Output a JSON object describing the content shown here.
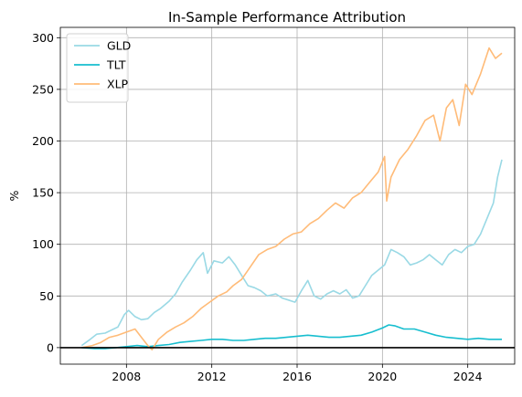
{
  "chart_data": {
    "type": "line",
    "title": "In-Sample Performance Attribution",
    "xlabel": "",
    "ylabel": "%",
    "xlim": [
      2004.9,
      2026.2
    ],
    "ylim": [
      -16,
      310
    ],
    "x_ticks": [
      2008,
      2012,
      2016,
      2020,
      2024
    ],
    "y_ticks": [
      0,
      50,
      100,
      150,
      200,
      250,
      300
    ],
    "grid": true,
    "legend_position": "top-left",
    "zero_line": true,
    "series": [
      {
        "name": "GLD",
        "color": "#9ad9e5",
        "x": [
          2005.9,
          2006.3,
          2006.6,
          2007.0,
          2007.3,
          2007.6,
          2007.9,
          2008.1,
          2008.4,
          2008.7,
          2009.0,
          2009.3,
          2009.6,
          2010.0,
          2010.3,
          2010.6,
          2011.0,
          2011.3,
          2011.6,
          2011.8,
          2012.1,
          2012.5,
          2012.8,
          2013.1,
          2013.4,
          2013.7,
          2014.0,
          2014.3,
          2014.6,
          2015.0,
          2015.3,
          2015.6,
          2015.9,
          2016.2,
          2016.5,
          2016.8,
          2017.1,
          2017.4,
          2017.7,
          2018.0,
          2018.3,
          2018.6,
          2018.9,
          2019.2,
          2019.5,
          2019.8,
          2020.1,
          2020.4,
          2020.7,
          2021.0,
          2021.3,
          2021.6,
          2021.9,
          2022.2,
          2022.5,
          2022.8,
          2023.1,
          2023.4,
          2023.7,
          2024.0,
          2024.3,
          2024.6,
          2024.9,
          2025.2,
          2025.4,
          2025.6
        ],
        "values": [
          2,
          8,
          13,
          14,
          17,
          20,
          32,
          36,
          30,
          27,
          28,
          34,
          38,
          45,
          52,
          63,
          75,
          85,
          92,
          72,
          84,
          82,
          88,
          80,
          70,
          60,
          58,
          55,
          50,
          52,
          48,
          46,
          44,
          55,
          65,
          50,
          47,
          52,
          55,
          52,
          56,
          48,
          50,
          60,
          70,
          75,
          80,
          95,
          92,
          88,
          80,
          82,
          85,
          90,
          85,
          80,
          90,
          95,
          92,
          98,
          100,
          110,
          125,
          140,
          165,
          182
        ]
      },
      {
        "name": "TLT",
        "color": "#17becf",
        "x": [
          2005.9,
          2006.5,
          2007.0,
          2007.5,
          2008.0,
          2008.5,
          2009.0,
          2009.5,
          2010.0,
          2010.5,
          2011.0,
          2011.5,
          2012.0,
          2012.5,
          2013.0,
          2013.5,
          2014.0,
          2014.5,
          2015.0,
          2015.5,
          2016.0,
          2016.5,
          2017.0,
          2017.5,
          2018.0,
          2018.5,
          2019.0,
          2019.5,
          2020.0,
          2020.3,
          2020.6,
          2021.0,
          2021.5,
          2022.0,
          2022.5,
          2023.0,
          2023.5,
          2024.0,
          2024.5,
          2025.0,
          2025.6
        ],
        "values": [
          0,
          -1,
          -1,
          0,
          1,
          2,
          1,
          2,
          3,
          5,
          6,
          7,
          8,
          8,
          7,
          7,
          8,
          9,
          9,
          10,
          11,
          12,
          11,
          10,
          10,
          11,
          12,
          15,
          19,
          22,
          21,
          18,
          18,
          15,
          12,
          10,
          9,
          8,
          9,
          8,
          8
        ]
      },
      {
        "name": "XLP",
        "color": "#ffbb78",
        "x": [
          2005.9,
          2006.4,
          2006.8,
          2007.2,
          2007.6,
          2008.0,
          2008.4,
          2008.7,
          2009.0,
          2009.2,
          2009.5,
          2009.9,
          2010.3,
          2010.7,
          2011.1,
          2011.5,
          2011.9,
          2012.3,
          2012.7,
          2013.0,
          2013.4,
          2013.8,
          2014.2,
          2014.6,
          2015.0,
          2015.4,
          2015.8,
          2016.2,
          2016.6,
          2017.0,
          2017.4,
          2017.8,
          2018.2,
          2018.6,
          2019.0,
          2019.4,
          2019.8,
          2020.1,
          2020.2,
          2020.4,
          2020.8,
          2021.2,
          2021.6,
          2022.0,
          2022.4,
          2022.7,
          2023.0,
          2023.3,
          2023.6,
          2023.9,
          2024.2,
          2024.6,
          2025.0,
          2025.3,
          2025.6
        ],
        "values": [
          0,
          2,
          5,
          10,
          12,
          15,
          18,
          10,
          2,
          -2,
          8,
          15,
          20,
          24,
          30,
          38,
          44,
          50,
          54,
          60,
          66,
          78,
          90,
          95,
          98,
          105,
          110,
          112,
          120,
          125,
          133,
          140,
          135,
          145,
          150,
          160,
          170,
          185,
          142,
          165,
          182,
          192,
          205,
          220,
          225,
          200,
          232,
          240,
          215,
          255,
          245,
          265,
          290,
          280,
          285
        ]
      }
    ]
  }
}
